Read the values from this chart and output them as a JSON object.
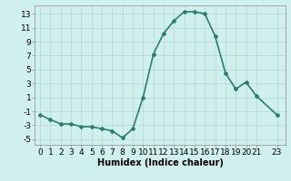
{
  "x": [
    0,
    1,
    2,
    3,
    4,
    5,
    6,
    7,
    8,
    9,
    10,
    11,
    12,
    13,
    14,
    15,
    16,
    17,
    18,
    19,
    20,
    21,
    23
  ],
  "y": [
    -1.5,
    -2.2,
    -2.8,
    -2.8,
    -3.2,
    -3.2,
    -3.5,
    -3.8,
    -4.8,
    -3.5,
    1.0,
    7.2,
    10.2,
    12.0,
    13.3,
    13.3,
    13.0,
    9.8,
    4.5,
    2.2,
    3.2,
    1.2,
    -1.5
  ],
  "line_color": "#2d7d6f",
  "marker": "D",
  "marker_size": 2,
  "linewidth": 1.2,
  "bg_color": "#cff0ec",
  "grid_color": "#b8ddd8",
  "xlabel": "Humidex (Indice chaleur)",
  "xlabel_fontsize": 7,
  "ylabel_ticks": [
    -5,
    -3,
    -1,
    1,
    3,
    5,
    7,
    9,
    11,
    13
  ],
  "xticks": [
    0,
    1,
    2,
    3,
    4,
    5,
    6,
    7,
    8,
    9,
    10,
    11,
    12,
    13,
    14,
    15,
    16,
    17,
    18,
    19,
    20,
    21,
    23
  ],
  "xlim": [
    -0.5,
    23.8
  ],
  "ylim": [
    -5.8,
    14.2
  ],
  "tick_fontsize": 6.5
}
